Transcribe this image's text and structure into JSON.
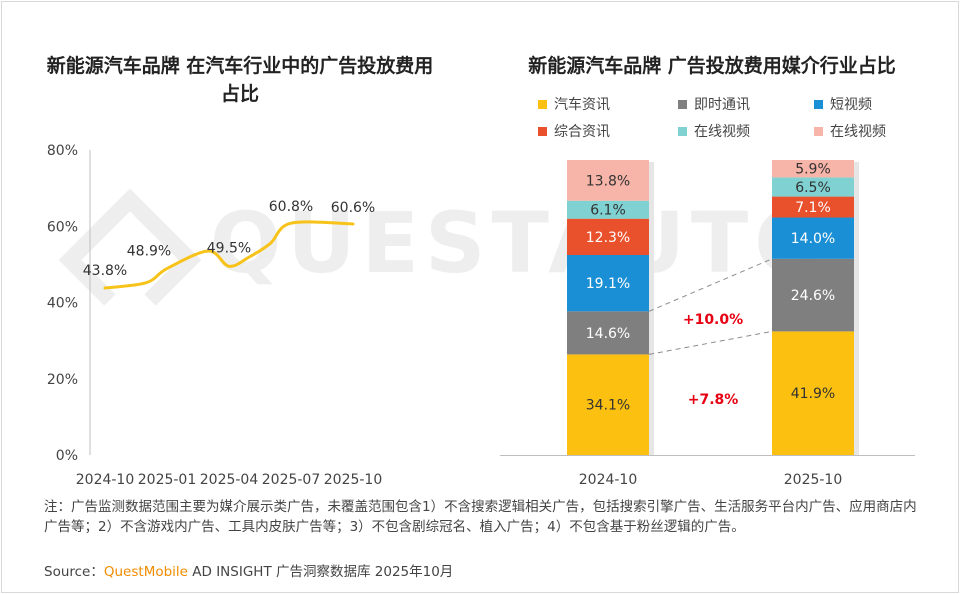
{
  "left_title": "新能源汽车品牌 在汽车行业中的广告投放费用占比",
  "right_title": "新能源汽车品牌 广告投放费用媒介行业占比",
  "watermark": "QUESTAUTO",
  "note": "注：广告监测数据范围主要为媒介展示类广告，未覆盖范围包含1）不含搜索逻辑相关广告，包括搜索引擎广告、生活服务平台内广告、应用商店内广告等；2）不含游戏内广告、工具内皮肤广告等；3）不包含剧综冠名、植入广告；4）不包含基于粉丝逻辑的广告。",
  "source": {
    "label": "Source：",
    "brand": "QuestMobile",
    "rest": " AD INSIGHT 广告洞察数据库 2025年10月"
  },
  "colors": {
    "line": "#f7c31a",
    "汽车资讯": "#fbc010",
    "即时通讯": "#7f7f7f",
    "短视频": "#1b8fd6",
    "综合资讯": "#e9502c",
    "在线视频_1": "#7fd1d2",
    "在线视频_2": "#f7b4a8"
  },
  "chart_data": [
    {
      "type": "line",
      "title": "新能源汽车品牌 在汽车行业中的广告投放费用占比",
      "x_ticks": [
        "2024-10",
        "2025-01",
        "2025-04",
        "2025-07",
        "2025-10"
      ],
      "y_ticks": [
        "0%",
        "20%",
        "40%",
        "60%",
        "80%"
      ],
      "ylim": [
        0,
        80
      ],
      "y_unit": "%",
      "points": [
        {
          "x": "2024-10",
          "y": 43.8,
          "label": "43.8%"
        },
        {
          "x": "2025-01",
          "y": 48.9,
          "label": "48.9%"
        },
        {
          "x": "2025-04",
          "y": 49.5,
          "label": "49.5%"
        },
        {
          "x": "2025-07",
          "y": 60.8,
          "label": "60.8%"
        },
        {
          "x": "2025-10",
          "y": 60.6,
          "label": "60.6%"
        }
      ],
      "curve_trace": [
        {
          "x": "2024-10",
          "y": 43.8
        },
        {
          "x": "2024-12",
          "y": 45.2
        },
        {
          "x": "2025-01",
          "y": 48.9
        },
        {
          "x": "2025-03",
          "y": 53.5
        },
        {
          "x": "2025-04",
          "y": 49.5
        },
        {
          "x": "2025-05",
          "y": 52.0
        },
        {
          "x": "2025-06",
          "y": 55.5
        },
        {
          "x": "2025-07",
          "y": 60.8
        },
        {
          "x": "2025-10",
          "y": 60.6
        }
      ],
      "grid": false
    },
    {
      "type": "bar",
      "stacked": true,
      "title": "新能源汽车品牌 广告投放费用媒介行业占比",
      "categories": [
        "2024-10",
        "2025-10"
      ],
      "series": [
        {
          "name": "汽车资讯",
          "color_key": "汽车资讯",
          "values": [
            34.1,
            41.9
          ],
          "labels": [
            "34.1%",
            "41.9%"
          ]
        },
        {
          "name": "即时通讯",
          "color_key": "即时通讯",
          "values": [
            14.6,
            24.6
          ],
          "labels": [
            "14.6%",
            "24.6%"
          ]
        },
        {
          "name": "短视频",
          "color_key": "短视频",
          "values": [
            19.1,
            14.0
          ],
          "labels": [
            "19.1%",
            "14.0%"
          ]
        },
        {
          "name": "综合资讯",
          "color_key": "综合资讯",
          "values": [
            12.3,
            7.1
          ],
          "labels": [
            "12.3%",
            "7.1%"
          ]
        },
        {
          "name": "在线视频",
          "color_key": "在线视频_1",
          "values": [
            6.1,
            6.5
          ],
          "labels": [
            "6.1%",
            "6.5%"
          ]
        },
        {
          "name": "在线视频",
          "color_key": "在线视频_2",
          "values": [
            13.8,
            5.9
          ],
          "labels": [
            "13.8%",
            "5.9%"
          ]
        }
      ],
      "legend_position": "top",
      "annotations": [
        {
          "text": "+10.0%",
          "series": "即时通讯"
        },
        {
          "text": "+7.8%",
          "series": "汽车资讯"
        }
      ]
    }
  ]
}
